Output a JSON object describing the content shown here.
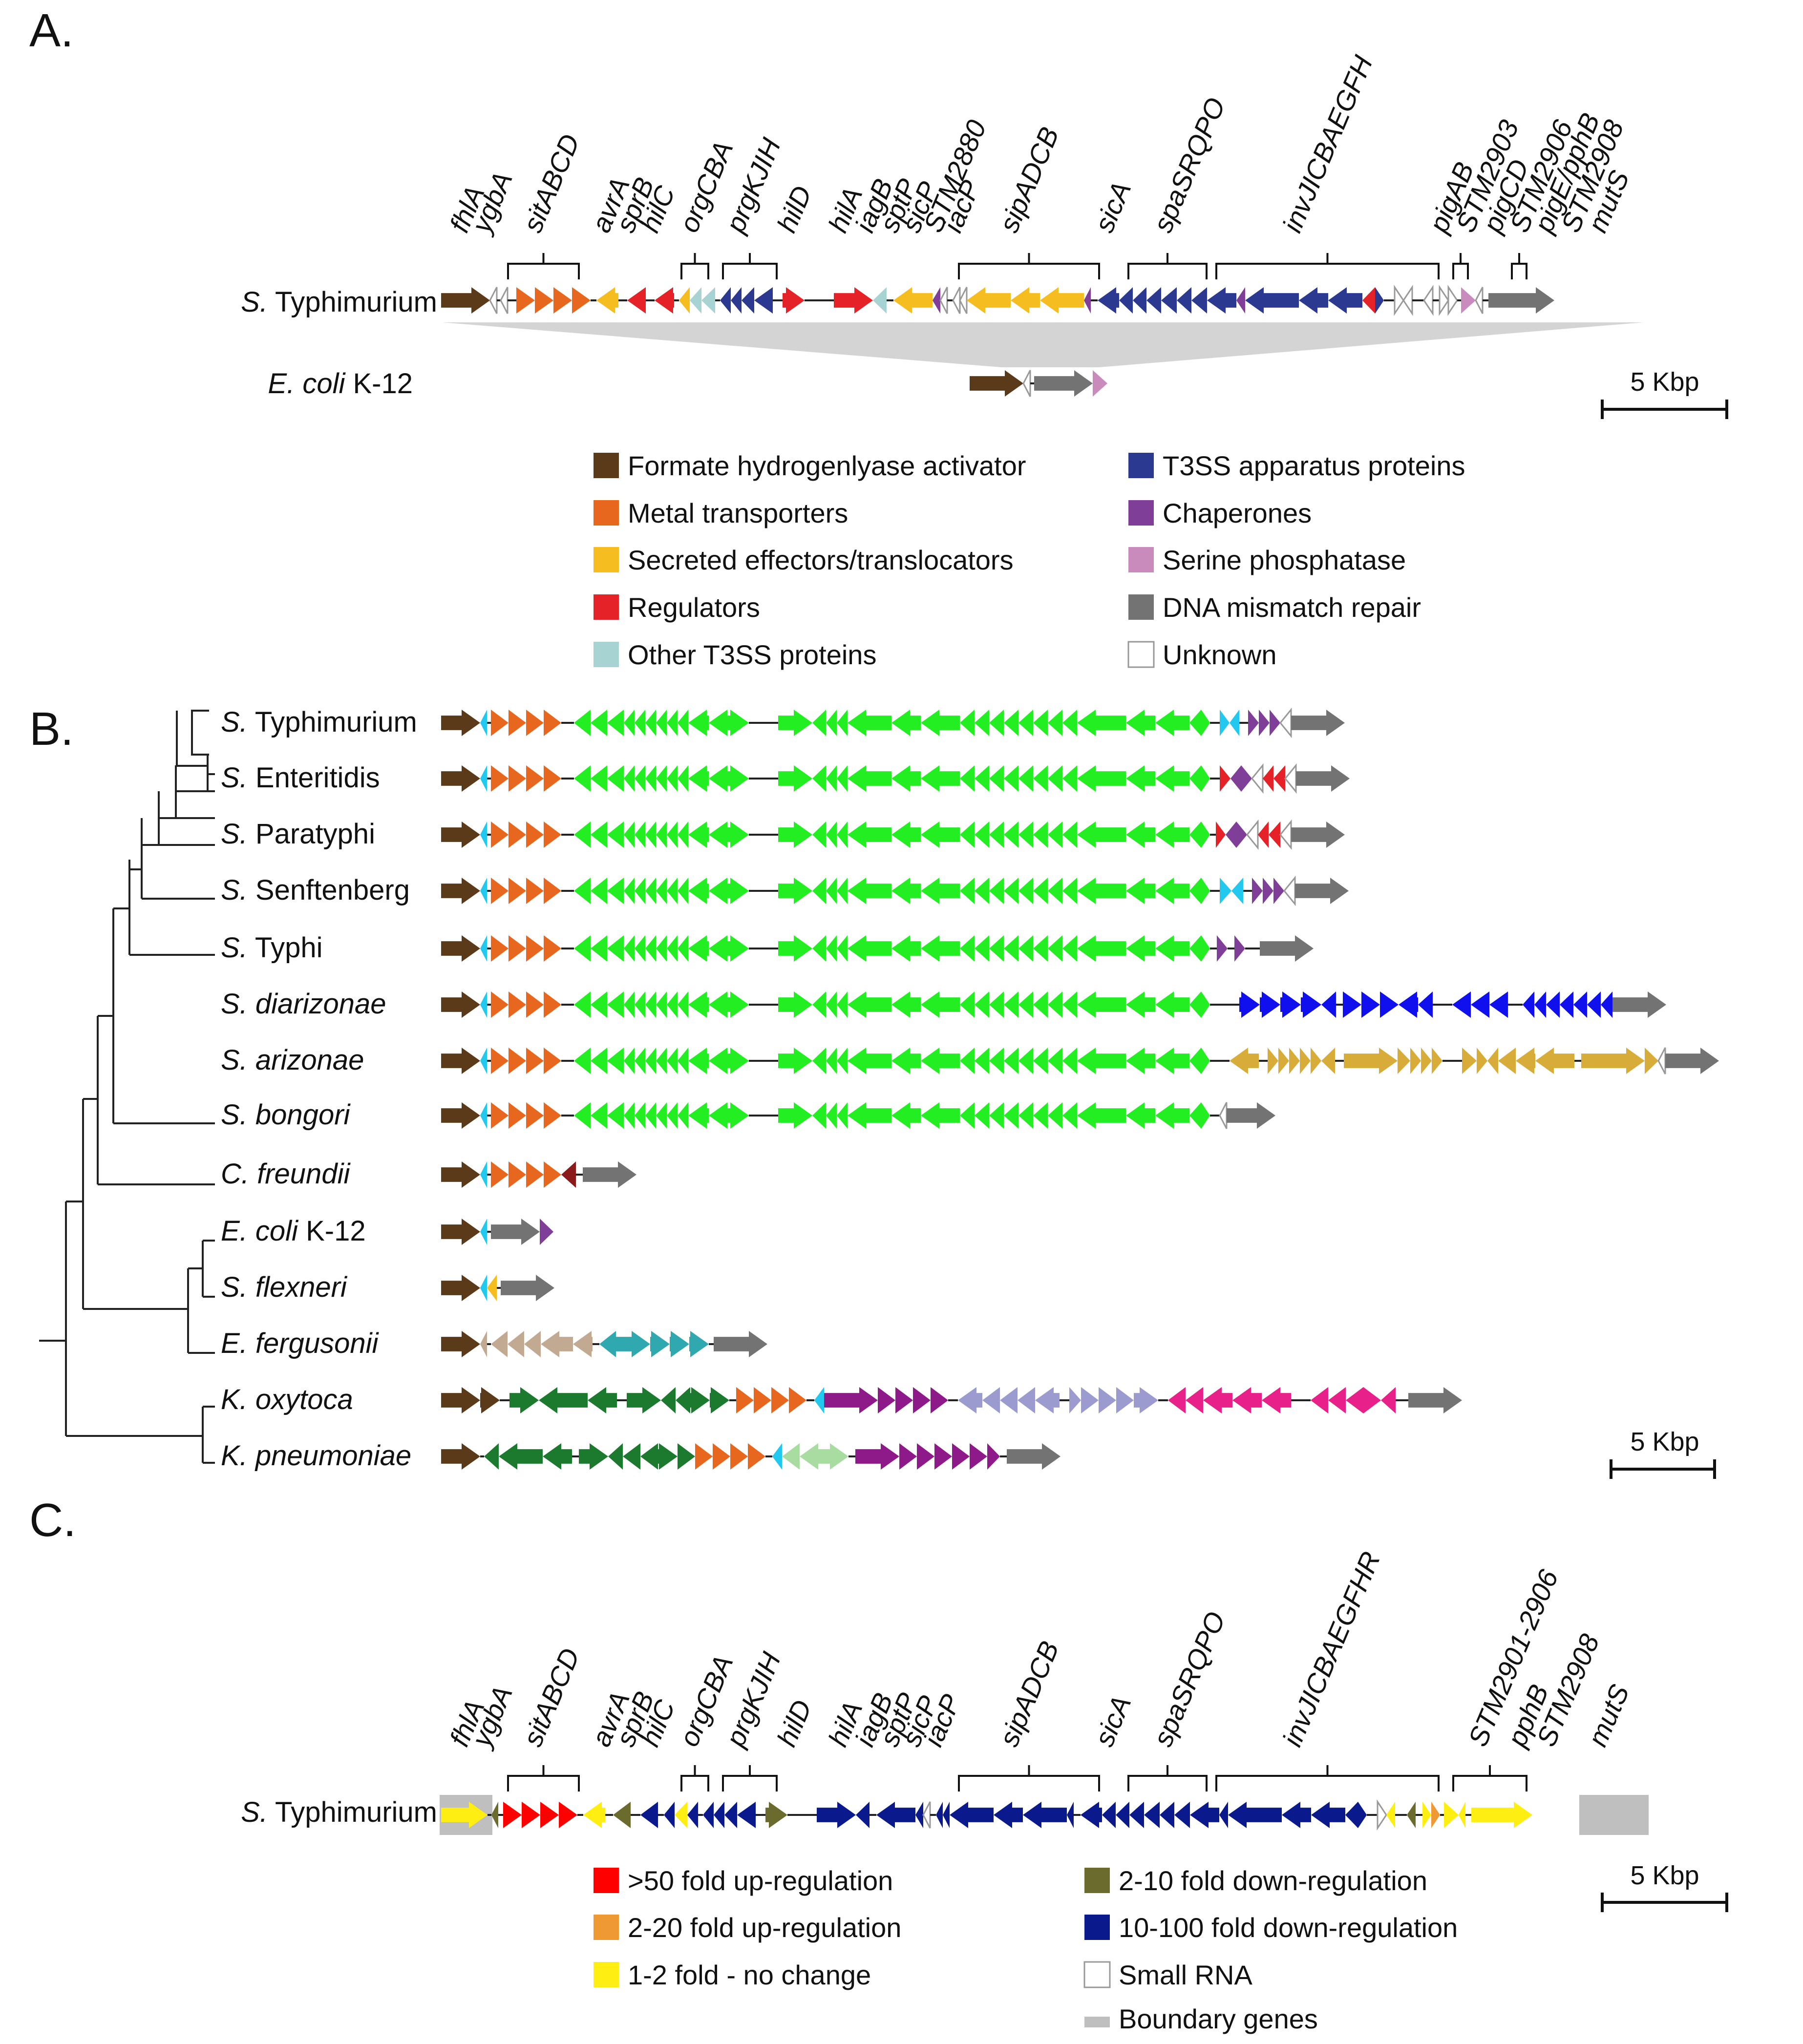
{
  "figure": {
    "panels": [
      "A.",
      "B.",
      "C."
    ],
    "scale_label": "5 Kbp"
  },
  "colors": {
    "brown": "#5b3a1a",
    "orange": "#e8671e",
    "yellow": "#f5bd1f",
    "red": "#e52228",
    "teal": "#a7d4d2",
    "navy": "#2b3990",
    "purple": "#7f3f98",
    "pink": "#c98bbb",
    "gray": "#737373",
    "white": "#ffffff",
    "green": "#22ee22",
    "cyan": "#22c8ee",
    "blue": "#1010ee",
    "gold": "#d8ac38",
    "maroon": "#8b1a1a",
    "tan": "#c2aa92",
    "teal2": "#30a8b0",
    "dkgreen": "#1b7a2e",
    "magenta": "#8e1a8a",
    "lavender": "#9b9bd0",
    "hotpink": "#e8208a",
    "ltgreen": "#a8dca0",
    "c_red": "#ff0000",
    "c_orange": "#ee9933",
    "c_yellow": "#ffee11",
    "c_olive": "#6b6b2e",
    "c_navy": "#0a1a8c",
    "c_gray": "#bfbfbf"
  },
  "panelA": {
    "organisms": [
      {
        "italic": "S.",
        "rest": " Typhimurium"
      },
      {
        "italic": "E. coli",
        "rest": " K-12"
      }
    ],
    "gene_labels": [
      "fhlA",
      "ygbA",
      "sitABCD",
      "avrA",
      "sprB",
      "hilC",
      "orgCBA",
      "prgKJIH",
      "hilD",
      "hilA",
      "iagB",
      "sptP",
      "sicP",
      "STM2880",
      "iacP",
      "sipADCB",
      "sicA",
      "spaSRQPO",
      "invJICBAEGFH",
      "pigAB",
      "STM2903",
      "pigCD",
      "STM2906",
      "pigE/pphB",
      "STM2908",
      "mutS"
    ],
    "legend": [
      {
        "label": "Formate hydrogenlyase activator",
        "color": "#5b3a1a"
      },
      {
        "label": "Metal transporters",
        "color": "#e8671e"
      },
      {
        "label": "Secreted effectors/translocators",
        "color": "#f5bd1f"
      },
      {
        "label": "Regulators",
        "color": "#e52228"
      },
      {
        "label": "Other T3SS proteins",
        "color": "#a7d4d2"
      },
      {
        "label": "T3SS apparatus proteins",
        "color": "#2b3990"
      },
      {
        "label": "Chaperones",
        "color": "#7f3f98"
      },
      {
        "label": "Serine phosphatase",
        "color": "#c98bbb"
      },
      {
        "label": "DNA mismatch repair",
        "color": "#737373"
      },
      {
        "label": "Unknown",
        "color": "#ffffff"
      }
    ]
  },
  "panelB": {
    "organisms": [
      {
        "italic": "S.",
        "rest": " Typhimurium"
      },
      {
        "italic": "S.",
        "rest": " Enteritidis"
      },
      {
        "italic": "S.",
        "rest": " Paratyphi"
      },
      {
        "italic": "S.",
        "rest": " Senftenberg"
      },
      {
        "italic": "S.",
        "rest": " Typhi"
      },
      {
        "italic": "S. diarizonae",
        "rest": ""
      },
      {
        "italic": "S. arizonae",
        "rest": ""
      },
      {
        "italic": "S. bongori",
        "rest": ""
      },
      {
        "italic": "C. freundii",
        "rest": ""
      },
      {
        "italic": "E. coli",
        "rest": " K-12"
      },
      {
        "italic": "S. flexneri",
        "rest": ""
      },
      {
        "italic": "E. fergusonii",
        "rest": ""
      },
      {
        "italic": "K. oxytoca",
        "rest": ""
      },
      {
        "italic": "K. pneumoniae",
        "rest": ""
      }
    ]
  },
  "panelC": {
    "organism": {
      "italic": "S.",
      "rest": " Typhimurium"
    },
    "gene_labels": [
      "fhlA",
      "ygbA",
      "sitABCD",
      "avrA",
      "sprB",
      "hilC",
      "orgCBA",
      "prgKJIH",
      "hilD",
      "hilA",
      "iagB",
      "sptP",
      "sicP",
      "iacP",
      "sipADCB",
      "sicA",
      "spaSRQPO",
      "invJICBAEGFHR",
      "STM2901-2906",
      "pphB",
      "STM2908",
      "mutS"
    ],
    "legend": [
      {
        "label": ">50 fold up-regulation",
        "color": "#ff0000"
      },
      {
        "label": "2-20 fold up-regulation",
        "color": "#ee9933"
      },
      {
        "label": "1-2 fold - no change",
        "color": "#ffee11"
      },
      {
        "label": "2-10 fold down-regulation",
        "color": "#6b6b2e"
      },
      {
        "label": "10-100 fold down-regulation",
        "color": "#0a1a8c"
      },
      {
        "label": "Small RNA",
        "color": "#ffffff"
      },
      {
        "label": "Boundary genes",
        "color": "#bfbfbf"
      }
    ]
  }
}
